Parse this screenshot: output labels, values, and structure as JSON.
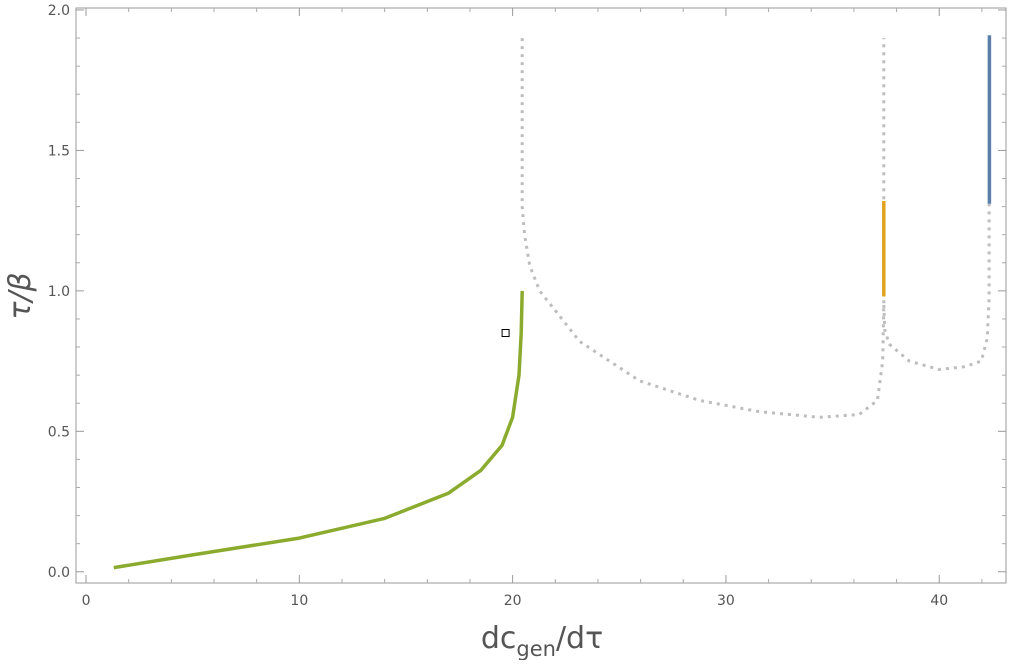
{
  "chart_data": {
    "type": "line",
    "xlabel": [
      "dc",
      "gen",
      "/dτ"
    ],
    "ylabel": "τ/β",
    "xlim": [
      -0.47,
      43.13
    ],
    "ylim": [
      -0.04,
      2.007
    ],
    "xticks": [
      0,
      10,
      20,
      30,
      40
    ],
    "yticks": [
      {
        "value": 0,
        "label": "0.0"
      },
      {
        "value": 0.5,
        "label": "0.5"
      },
      {
        "value": 1,
        "label": "1.0"
      },
      {
        "value": 1.5,
        "label": "1.5"
      },
      {
        "value": 2,
        "label": "2.0"
      }
    ],
    "xminorticks": [
      2,
      4,
      6,
      8,
      12,
      14,
      16,
      18,
      22,
      24,
      26,
      28,
      32,
      34,
      36,
      38,
      42
    ],
    "yminorticks": [
      0.1,
      0.2,
      0.3,
      0.4,
      0.6,
      0.7,
      0.8,
      0.9,
      1.1,
      1.2,
      1.3,
      1.4,
      1.6,
      1.7,
      1.8,
      1.9
    ],
    "series": [
      {
        "color": "#bdbdbd",
        "dashed": true,
        "x": [
          20.45,
          20.45,
          20.5,
          20.56,
          20.8,
          21.27,
          23.14,
          25.95,
          28.76,
          31.57,
          34.38,
          36.25,
          37.1,
          37.35,
          37.4,
          37.4
        ],
        "y": [
          1.9,
          1.3,
          1.25,
          1.2,
          1.09,
          1.0,
          0.82,
          0.68,
          0.61,
          0.57,
          0.55,
          0.56,
          0.61,
          0.75,
          0.95,
          1.9
        ]
      },
      {
        "color": "#bdbdbd",
        "dashed": true,
        "x": [
          37.4,
          37.45,
          37.66,
          38.6,
          40,
          41.2,
          41.97,
          42.25,
          42.34,
          42.34
        ],
        "y": [
          0.95,
          0.86,
          0.81,
          0.75,
          0.72,
          0.73,
          0.75,
          0.83,
          0.97,
          1.31
        ]
      },
      {
        "color": "#8aab2e",
        "dashed": false,
        "x": [
          1.3,
          5,
          10,
          14,
          17,
          18.5,
          19.5,
          20,
          20.3,
          20.4,
          20.45
        ],
        "y": [
          0.015,
          0.06,
          0.12,
          0.19,
          0.28,
          0.36,
          0.45,
          0.55,
          0.7,
          0.85,
          1.0
        ]
      },
      {
        "color": "#e0a31f",
        "dashed": false,
        "x": [
          37.4,
          37.4
        ],
        "y": [
          0.98,
          1.32
        ]
      },
      {
        "color": "#5b7fa8",
        "dashed": false,
        "x": [
          42.35,
          42.35
        ],
        "y": [
          1.31,
          1.91
        ]
      }
    ],
    "marker": {
      "x": 19.67,
      "y": 0.85
    }
  }
}
